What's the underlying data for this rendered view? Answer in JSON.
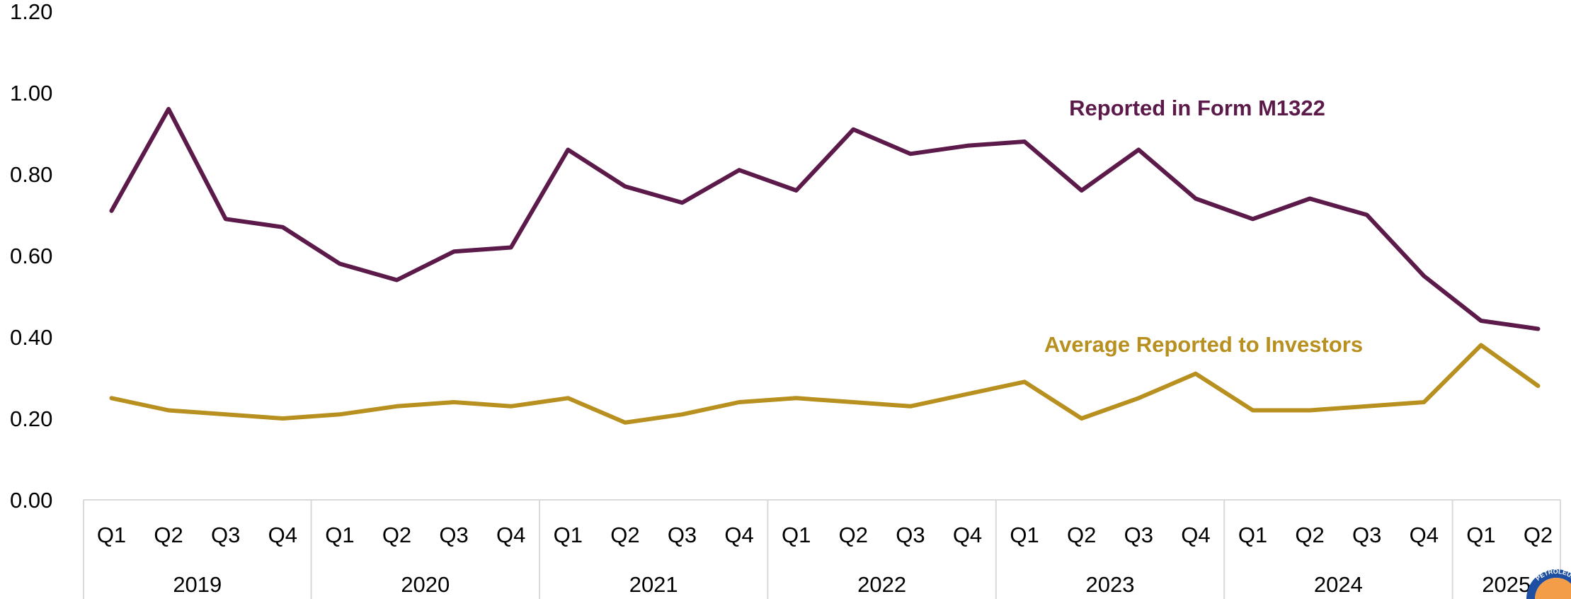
{
  "chart_data": {
    "type": "line",
    "title": "",
    "xlabel": "",
    "ylabel": "",
    "ylim": [
      0,
      1.2
    ],
    "yticks": [
      "0.00",
      "0.20",
      "0.40",
      "0.60",
      "0.80",
      "1.00",
      "1.20"
    ],
    "grid": false,
    "x": [
      {
        "quarter": "Q1",
        "year": "2019"
      },
      {
        "quarter": "Q2",
        "year": "2019"
      },
      {
        "quarter": "Q3",
        "year": "2019"
      },
      {
        "quarter": "Q4",
        "year": "2019"
      },
      {
        "quarter": "Q1",
        "year": "2020"
      },
      {
        "quarter": "Q2",
        "year": "2020"
      },
      {
        "quarter": "Q3",
        "year": "2020"
      },
      {
        "quarter": "Q4",
        "year": "2020"
      },
      {
        "quarter": "Q1",
        "year": "2021"
      },
      {
        "quarter": "Q2",
        "year": "2021"
      },
      {
        "quarter": "Q3",
        "year": "2021"
      },
      {
        "quarter": "Q4",
        "year": "2021"
      },
      {
        "quarter": "Q1",
        "year": "2022"
      },
      {
        "quarter": "Q2",
        "year": "2022"
      },
      {
        "quarter": "Q3",
        "year": "2022"
      },
      {
        "quarter": "Q4",
        "year": "2022"
      },
      {
        "quarter": "Q1",
        "year": "2023"
      },
      {
        "quarter": "Q2",
        "year": "2023"
      },
      {
        "quarter": "Q3",
        "year": "2023"
      },
      {
        "quarter": "Q4",
        "year": "2023"
      },
      {
        "quarter": "Q1",
        "year": "2024"
      },
      {
        "quarter": "Q2",
        "year": "2024"
      },
      {
        "quarter": "Q3",
        "year": "2024"
      },
      {
        "quarter": "Q4",
        "year": "2024"
      },
      {
        "quarter": "Q1",
        "year": "2025"
      },
      {
        "quarter": "Q2",
        "year": "2025"
      }
    ],
    "years": [
      "2019",
      "2020",
      "2021",
      "2022",
      "2023",
      "2024",
      "2025"
    ],
    "series": [
      {
        "name": "Reported in Form M1322",
        "color": "#5c1a4a",
        "values": [
          0.71,
          0.96,
          0.69,
          0.67,
          0.58,
          0.54,
          0.61,
          0.62,
          0.86,
          0.77,
          0.73,
          0.81,
          0.76,
          0.91,
          0.85,
          0.87,
          0.88,
          0.76,
          0.86,
          0.74,
          0.69,
          0.74,
          0.7,
          0.55,
          0.44,
          0.42
        ]
      },
      {
        "name": "Average Reported to Investors",
        "color": "#b8901f",
        "values": [
          0.25,
          0.22,
          0.21,
          0.2,
          0.21,
          0.23,
          0.24,
          0.23,
          0.25,
          0.19,
          0.21,
          0.24,
          0.25,
          0.24,
          0.23,
          0.26,
          0.29,
          0.2,
          0.25,
          0.31,
          0.22,
          0.22,
          0.23,
          0.24,
          0.38,
          0.28
        ]
      }
    ]
  },
  "logo": {
    "text": "PETROLEUM",
    "colors": [
      "#1f4fa3",
      "#f28c28"
    ]
  }
}
